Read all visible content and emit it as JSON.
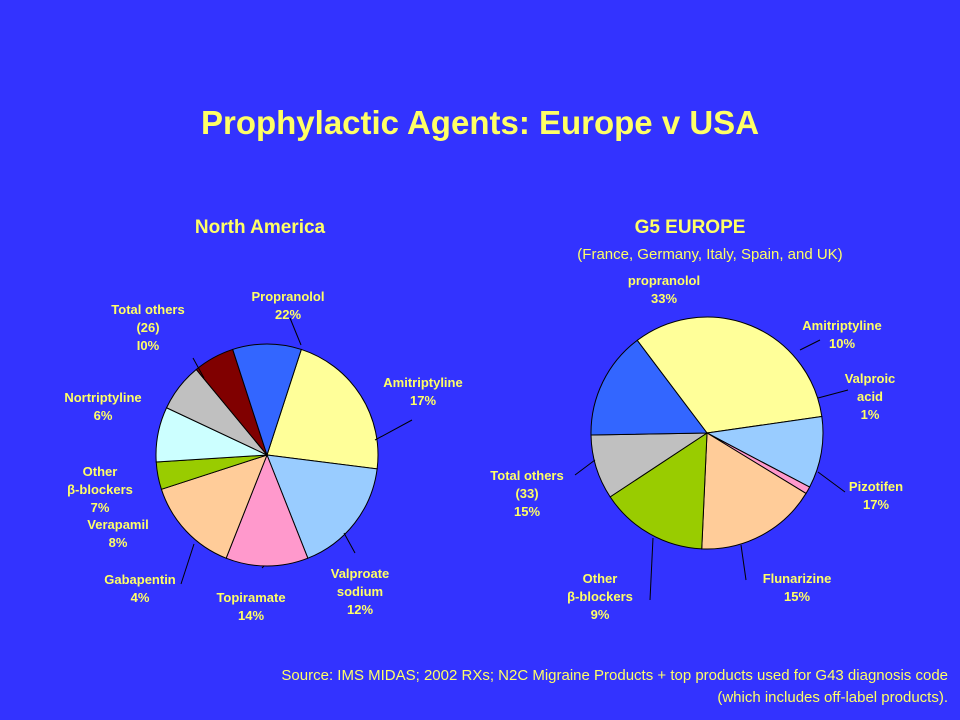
{
  "slide": {
    "title": "Prophylactic Agents: Europe v USA",
    "source_line1": "Source: IMS MIDAS; 2002 RXs; N2C Migraine Products + top products used for G43 diagnosis code",
    "source_line2": "(which includes off-label products)."
  },
  "colors": {
    "background": "#3333ff",
    "text": "#ffff66"
  },
  "chart_data": [
    {
      "type": "pie",
      "title": "North America",
      "subtitle": "",
      "slices": [
        {
          "lines": [
            "Propranolol",
            "22%"
          ],
          "value": 22,
          "color": "#ffff99"
        },
        {
          "lines": [
            "Amitriptyline",
            "17%"
          ],
          "value": 17,
          "color": "#99ccff"
        },
        {
          "lines": [
            "Valproate",
            "sodium",
            "12%"
          ],
          "value": 12,
          "color": "#ff99cc"
        },
        {
          "lines": [
            "Topiramate",
            "14%"
          ],
          "value": 14,
          "color": "#ffcc99"
        },
        {
          "lines": [
            "Gabapentin",
            "4%"
          ],
          "value": 4,
          "color": "#99cc00"
        },
        {
          "lines": [
            "Verapamil",
            "8%"
          ],
          "value": 8,
          "color": "#ccffff"
        },
        {
          "lines": [
            "Other",
            "β-blockers",
            "7%"
          ],
          "value": 7,
          "color": "#c0c0c0"
        },
        {
          "lines": [
            "Nortriptyline",
            "6%"
          ],
          "value": 6,
          "color": "#800000"
        },
        {
          "lines": [
            "Total others",
            "(26)",
            "I0%"
          ],
          "value": 10,
          "color": "#3366ff"
        }
      ]
    },
    {
      "type": "pie",
      "title": "G5 EUROPE",
      "subtitle": "(France, Germany, Italy, Spain, and UK)",
      "slices": [
        {
          "lines": [
            "propranolol",
            "33%"
          ],
          "value": 33,
          "color": "#ffff99"
        },
        {
          "lines": [
            "Amitriptyline",
            "10%"
          ],
          "value": 10,
          "color": "#99ccff"
        },
        {
          "lines": [
            "Valproic",
            "acid",
            "1%"
          ],
          "value": 1,
          "color": "#ff99cc"
        },
        {
          "lines": [
            "Pizotifen",
            "17%"
          ],
          "value": 17,
          "color": "#ffcc99"
        },
        {
          "lines": [
            "Flunarizine",
            "15%"
          ],
          "value": 15,
          "color": "#99cc00"
        },
        {
          "lines": [
            "Other",
            "β-blockers",
            "9%"
          ],
          "value": 9,
          "color": "#c0c0c0"
        },
        {
          "lines": [
            "Total others",
            "(33)",
            "15%"
          ],
          "value": 15,
          "color": "#3366ff"
        }
      ]
    }
  ]
}
